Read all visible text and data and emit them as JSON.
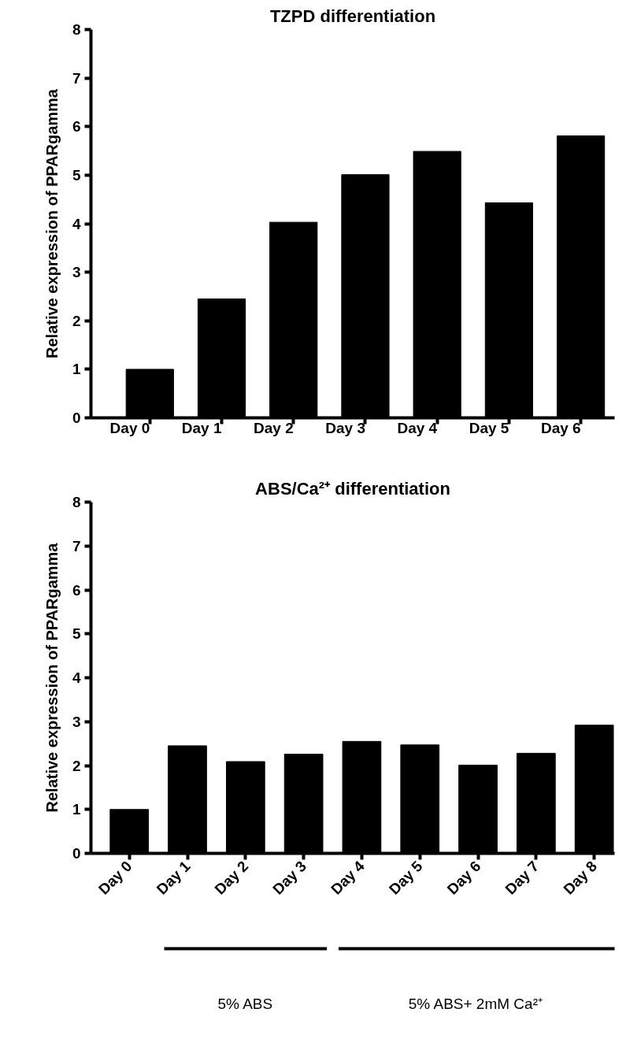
{
  "chart_data": [
    {
      "type": "bar",
      "title": "TZPD differentiation",
      "ylabel": "Relative expression of PPARgamma",
      "categories": [
        "Day 0",
        "Day 1",
        "Day 2",
        "Day 3",
        "Day 4",
        "Day 5",
        "Day 6"
      ],
      "values": [
        1.0,
        2.45,
        4.03,
        5.01,
        5.49,
        4.43,
        5.81
      ],
      "color": "#000000",
      "ylim": [
        0,
        8
      ],
      "yticks": [
        0,
        1,
        2,
        3,
        4,
        5,
        6,
        7,
        8
      ],
      "grid": false
    },
    {
      "type": "bar",
      "title": "ABS/Ca²⁺ differentiation",
      "ylabel": "Relative expression of PPARgamma",
      "categories": [
        "Day 0",
        "Day 1",
        "Day 2",
        "Day 3",
        "Day 4",
        "Day 5",
        "Day 6",
        "Day 7",
        "Day 8"
      ],
      "values": [
        1.0,
        2.45,
        2.09,
        2.26,
        2.55,
        2.47,
        2.01,
        2.28,
        2.92
      ],
      "color": "#000000",
      "ylim": [
        0,
        8
      ],
      "yticks": [
        0,
        1,
        2,
        3,
        4,
        5,
        6,
        7,
        8
      ],
      "grid": false,
      "annotations": [
        "5% ABS",
        "5% ABS+ 2mM  Ca²⁺"
      ]
    }
  ]
}
